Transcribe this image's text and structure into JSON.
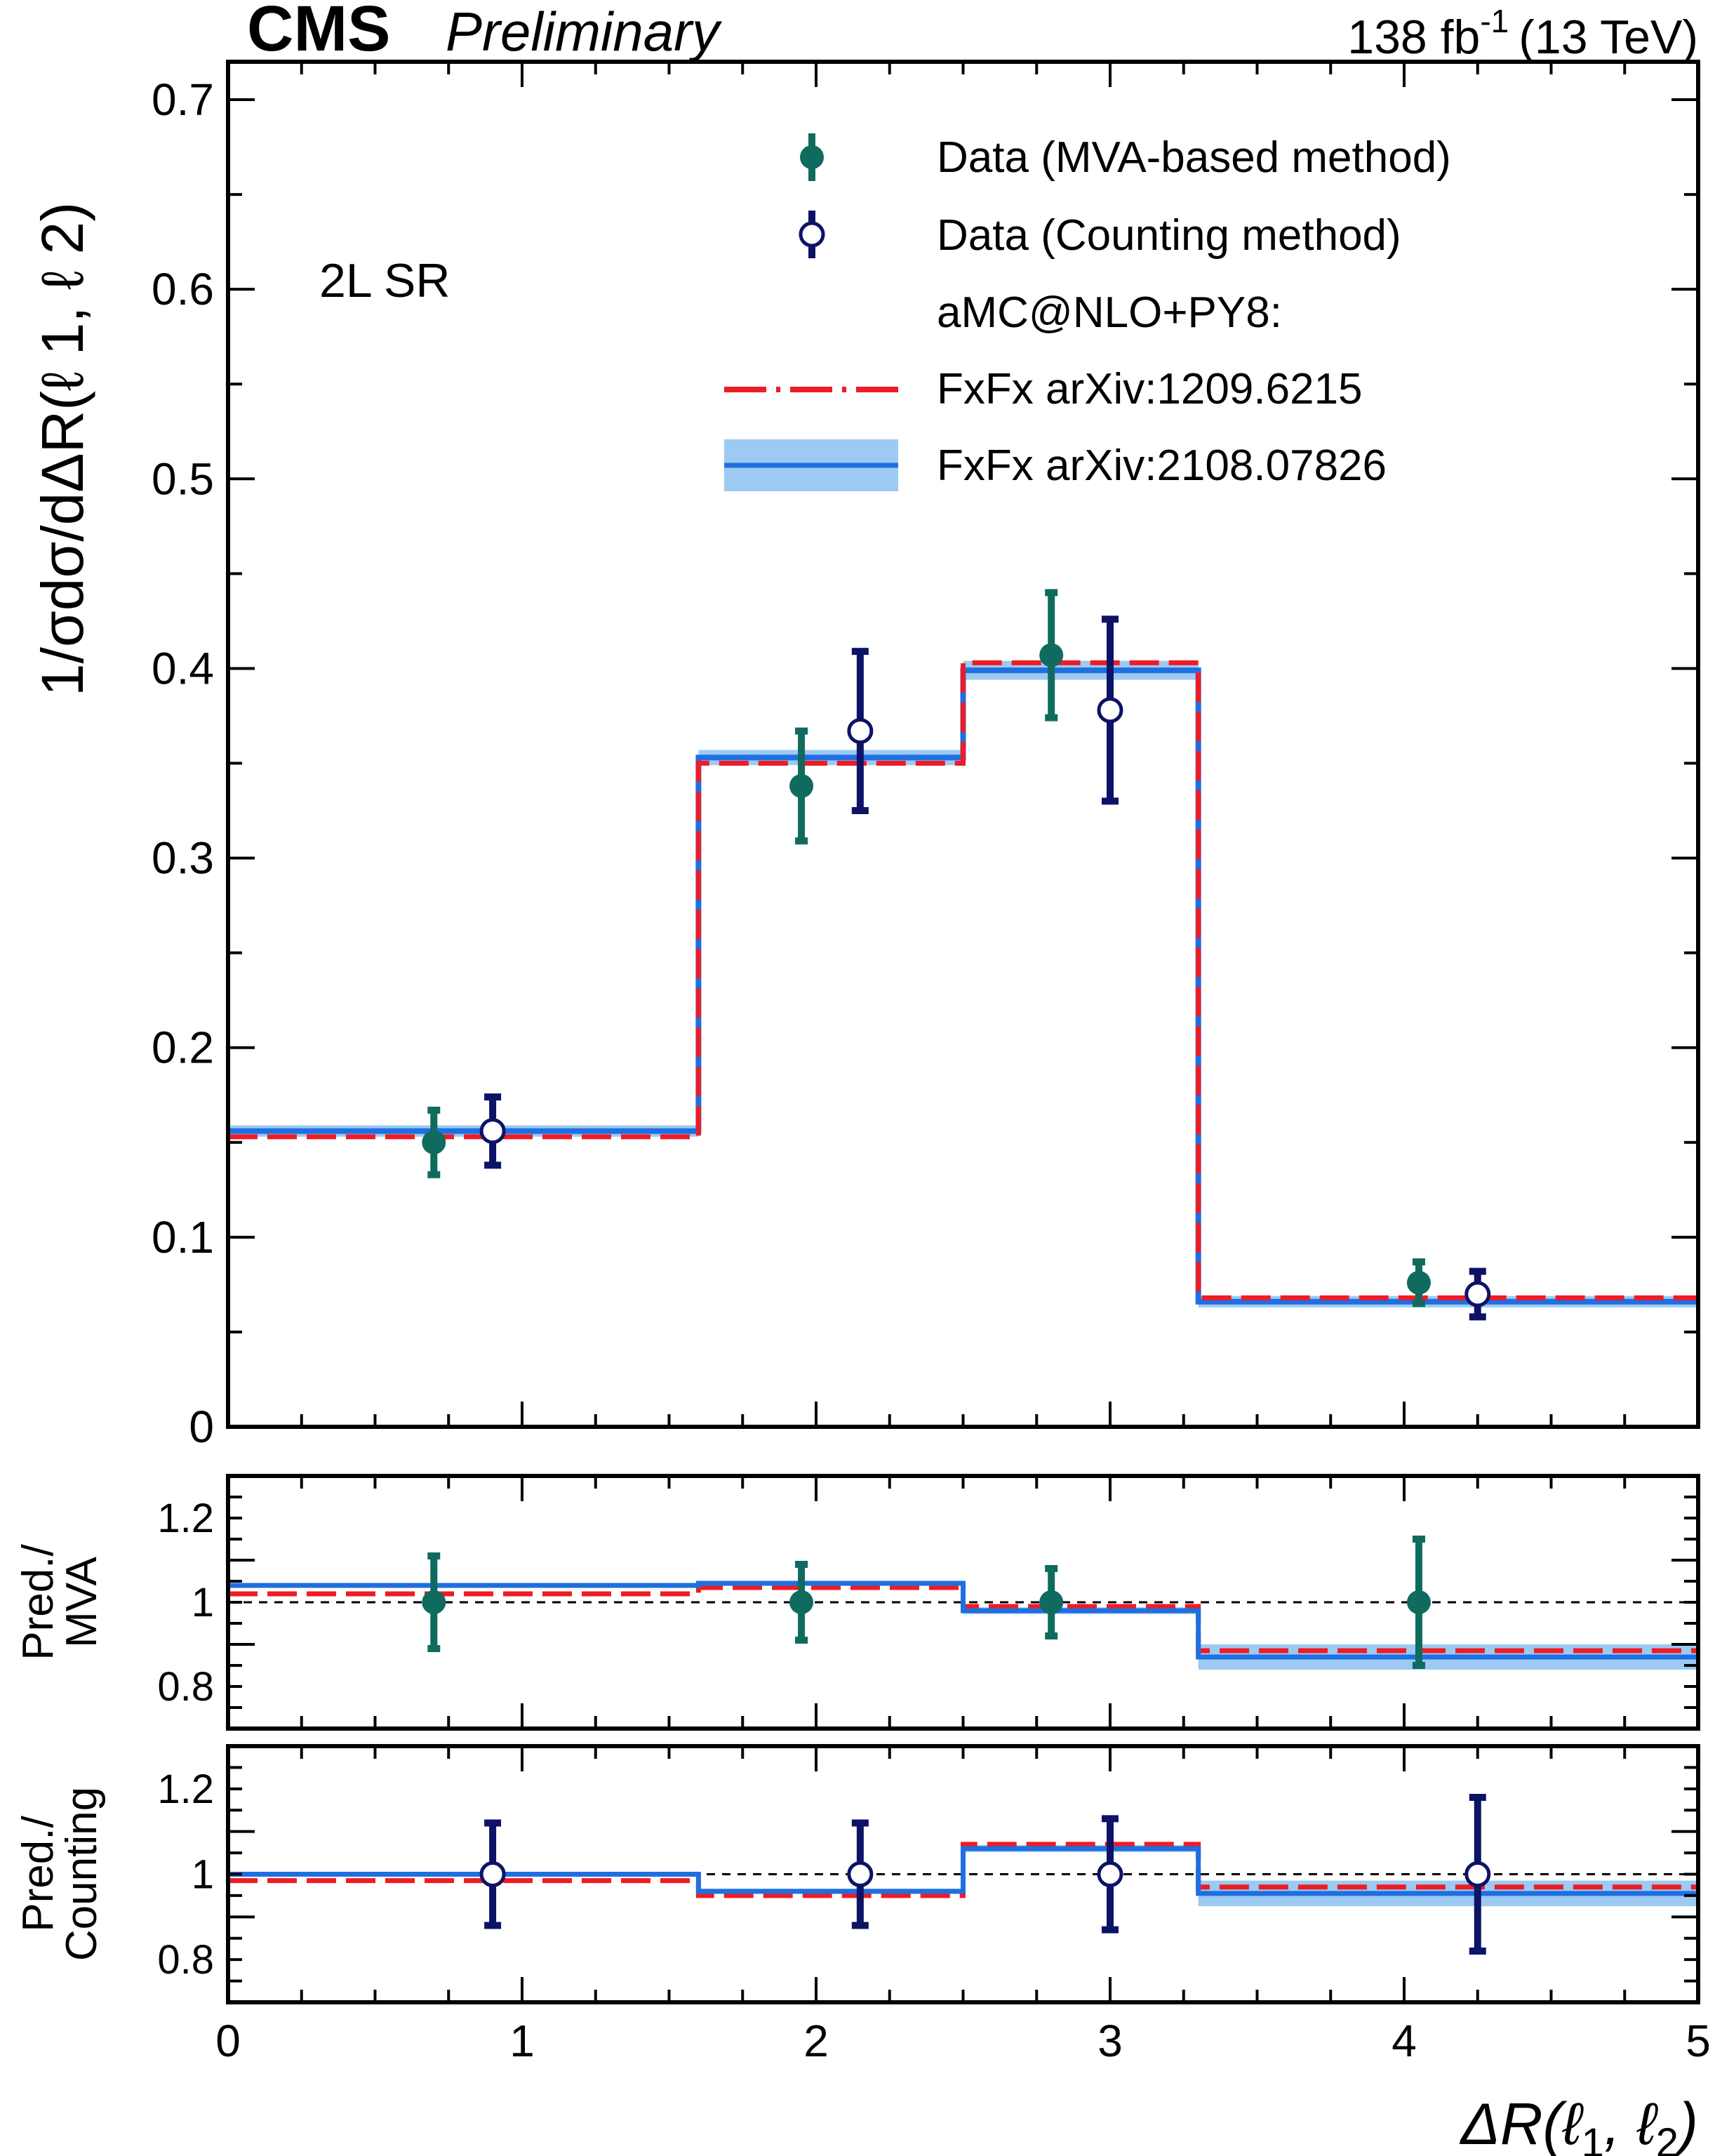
{
  "header": {
    "experiment": "CMS",
    "status": "Preliminary",
    "lumi": "138 fb",
    "lumi_exp": "-1",
    "energy": "(13 TeV)"
  },
  "chart_data": {
    "type": "line",
    "region_label": "2L SR",
    "xlabel_parts": {
      "main": "ΔR(ℓ",
      "sub1": "1",
      "mid": ", ℓ",
      "sub2": "2",
      "end": ")"
    },
    "ylabel": "1/σdσ/dΔR(ℓ 1, ℓ 2)",
    "xlim": [
      0,
      5
    ],
    "ylim": [
      0,
      0.72
    ],
    "bin_edges": [
      0,
      1.6,
      2.5,
      3.3,
      5
    ],
    "x_ticks": [
      "0",
      "1",
      "2",
      "3",
      "4",
      "5"
    ],
    "y_ticks": [
      "0",
      "0.1",
      "0.2",
      "0.3",
      "0.4",
      "0.5",
      "0.6",
      "0.7"
    ],
    "legend": {
      "mva": "Data (MVA-based method)",
      "counting": "Data (Counting method)",
      "generator": "aMC@NLO+PY8:",
      "fxfx_old": "FxFx arXiv:1209.6215",
      "fxfx_new": "FxFx arXiv:2108.07826"
    },
    "colors": {
      "mva": "#0f6b5e",
      "counting": "#0c1366",
      "fxfx_old": "#ee1c25",
      "fxfx_new": "#1f6fe0",
      "band": "#9ccaf2"
    },
    "series": [
      {
        "name": "FxFx arXiv:1209.6215",
        "style": "dashed-step",
        "values": [
          0.153,
          0.35,
          0.403,
          0.068
        ]
      },
      {
        "name": "FxFx arXiv:2108.07826",
        "style": "step-with-band",
        "values": [
          0.156,
          0.353,
          0.399,
          0.066
        ],
        "band": [
          0.003,
          0.004,
          0.005,
          0.003
        ]
      },
      {
        "name": "Data (MVA-based method)",
        "style": "filled-marker",
        "x": [
          0.7,
          1.95,
          2.8,
          4.05
        ],
        "y": [
          0.15,
          0.338,
          0.407,
          0.076
        ],
        "err": [
          0.017,
          0.029,
          0.033,
          0.011
        ]
      },
      {
        "name": "Data (Counting method)",
        "style": "open-marker",
        "x": [
          0.9,
          2.15,
          3.0,
          4.25
        ],
        "y": [
          0.156,
          0.367,
          0.378,
          0.07
        ],
        "err": [
          0.018,
          0.042,
          0.048,
          0.012
        ]
      }
    ],
    "ratio_panels": [
      {
        "ylabel_lines": [
          "Pred./",
          "MVA"
        ],
        "ylim": [
          0.7,
          1.3
        ],
        "y_ticks": [
          "0.8",
          "1",
          "1.2"
        ],
        "pred_old": [
          1.02,
          1.035,
          0.99,
          0.885
        ],
        "pred_new": [
          1.04,
          1.045,
          0.98,
          0.87
        ],
        "band": [
          0.005,
          0.006,
          0.008,
          0.03
        ],
        "points_x": [
          0.7,
          1.95,
          2.8,
          4.05
        ],
        "points_err": [
          0.11,
          0.09,
          0.08,
          0.15
        ]
      },
      {
        "ylabel_lines": [
          "Pred./",
          "Counting"
        ],
        "ylim": [
          0.7,
          1.3
        ],
        "y_ticks": [
          "0.8",
          "1",
          "1.2"
        ],
        "pred_old": [
          0.985,
          0.95,
          1.07,
          0.97
        ],
        "pred_new": [
          1.0,
          0.96,
          1.06,
          0.955
        ],
        "band": [
          0.005,
          0.006,
          0.008,
          0.03
        ],
        "points_x": [
          0.9,
          2.15,
          3.0,
          4.25
        ],
        "points_err": [
          0.12,
          0.12,
          0.13,
          0.18
        ]
      }
    ]
  }
}
